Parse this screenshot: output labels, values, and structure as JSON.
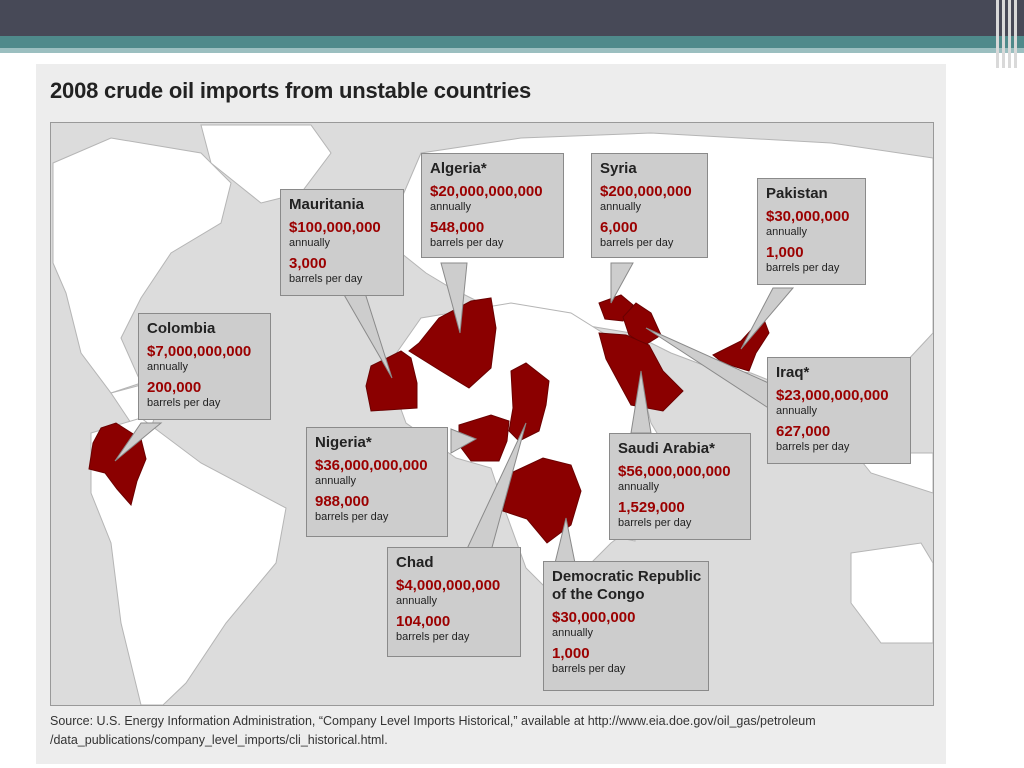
{
  "slide": {
    "title": "2008 crude oil imports from unstable countries",
    "source": "Source: U.S. Energy Information Administration, “Company Level Imports Historical,” available at http://www.eia.doe.gov/oil_gas/petroleum /data_publications/company_level_imports/cli_historical.html."
  },
  "colors": {
    "highlight_country": "#8b0000",
    "land": "#ffffff",
    "water": "#dcdcdc",
    "value_text": "#9b0000"
  },
  "callouts": [
    {
      "name": "Mauritania",
      "amount": "$100,000,000",
      "amount_unit": "annually",
      "barrels": "3,000",
      "barrels_unit": "barrels per day"
    },
    {
      "name": "Algeria*",
      "amount": "$20,000,000,000",
      "amount_unit": "annually",
      "barrels": "548,000",
      "barrels_unit": "barrels per day"
    },
    {
      "name": "Syria",
      "amount": "$200,000,000",
      "amount_unit": "annually",
      "barrels": "6,000",
      "barrels_unit": "barrels per day"
    },
    {
      "name": "Pakistan",
      "amount": "$30,000,000",
      "amount_unit": "annually",
      "barrels": "1,000",
      "barrels_unit": "barrels per day"
    },
    {
      "name": "Colombia",
      "amount": "$7,000,000,000",
      "amount_unit": "annually",
      "barrels": "200,000",
      "barrels_unit": "barrels per day"
    },
    {
      "name": "Iraq*",
      "amount": "$23,000,000,000",
      "amount_unit": "annually",
      "barrels": "627,000",
      "barrels_unit": "barrels per day"
    },
    {
      "name": "Nigeria*",
      "amount": "$36,000,000,000",
      "amount_unit": "annually",
      "barrels": "988,000",
      "barrels_unit": "barrels per day"
    },
    {
      "name": "Saudi Arabia*",
      "amount": "$56,000,000,000",
      "amount_unit": "annually",
      "barrels": "1,529,000",
      "barrels_unit": "barrels per day"
    },
    {
      "name": "Chad",
      "amount": "$4,000,000,000",
      "amount_unit": "annually",
      "barrels": "104,000",
      "barrels_unit": "barrels per day"
    },
    {
      "name": "Democratic Republic of the Congo",
      "amount": "$30,000,000",
      "amount_unit": "annually",
      "barrels": "1,000",
      "barrels_unit": "barrels per day"
    }
  ]
}
